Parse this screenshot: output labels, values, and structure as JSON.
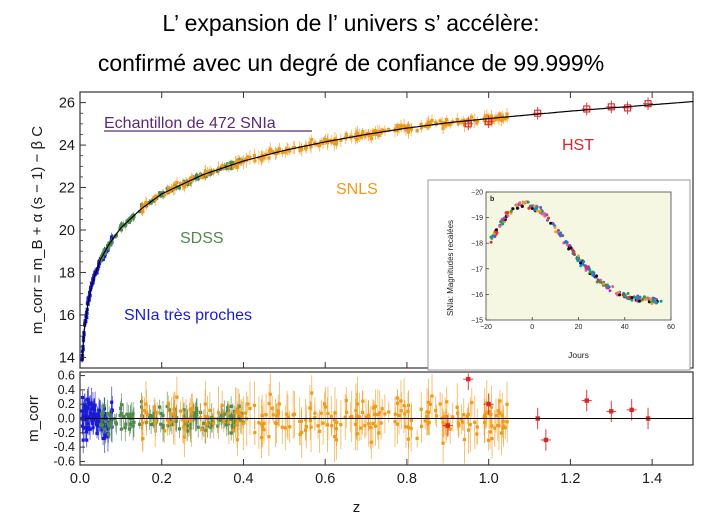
{
  "title_line1": "L’ expansion de l’ univers s’ accélère:",
  "title_line2": "confirmé avec un degré de confiance de 99.999%",
  "colors": {
    "very_near": "#1a1ad6",
    "sdss": "#4e8a4e",
    "snls": "#f09a1c",
    "hst": "#d9262b",
    "sample_label": "#5a2a7a",
    "fit_line": "#000000"
  },
  "chart_data": [
    {
      "type": "scatter",
      "xlabel": "",
      "ylabel": "m_corr = m_B + α (s − 1) − β C",
      "xlim": [
        0.0,
        1.5
      ],
      "ylim": [
        13.5,
        26.5
      ],
      "y_ticks": [
        "14",
        "16",
        "18",
        "20",
        "22",
        "24",
        "26"
      ],
      "grid": false,
      "annotations": [
        {
          "text": "Echantillon de 472 SNIa",
          "color": "#5a2a7a",
          "underline": true
        },
        {
          "text": "SNIa très proches",
          "color": "#1a1ad6"
        },
        {
          "text": "SDSS",
          "color": "#4e8a4e"
        },
        {
          "text": "SNLS",
          "color": "#f09a1c"
        },
        {
          "text": "HST",
          "color": "#d9262b"
        }
      ],
      "fit_curve": {
        "x": [
          0.005,
          0.01,
          0.02,
          0.03,
          0.05,
          0.07,
          0.1,
          0.15,
          0.2,
          0.3,
          0.4,
          0.5,
          0.6,
          0.7,
          0.8,
          0.9,
          1.0,
          1.2,
          1.4,
          1.5
        ],
        "y": [
          13.8,
          15.2,
          16.6,
          17.5,
          18.6,
          19.3,
          20.1,
          21.0,
          21.7,
          22.6,
          23.25,
          23.75,
          24.15,
          24.5,
          24.8,
          25.05,
          25.25,
          25.6,
          25.9,
          26.05
        ]
      },
      "series": [
        {
          "name": "SNIa très proches",
          "x_range": [
            0.005,
            0.08
          ],
          "y_range": [
            13.9,
            19.0
          ]
        },
        {
          "name": "SDSS",
          "x_range": [
            0.05,
            0.4
          ],
          "y_range": [
            18.8,
            23.4
          ]
        },
        {
          "name": "SNLS",
          "x_range": [
            0.15,
            1.05
          ],
          "y_range": [
            21.5,
            25.6
          ]
        },
        {
          "name": "HST",
          "x": [
            0.95,
            1.0,
            1.12,
            1.24,
            1.3,
            1.34,
            1.39
          ],
          "y": [
            25.0,
            25.1,
            25.5,
            25.7,
            25.8,
            25.75,
            25.95
          ]
        }
      ]
    },
    {
      "type": "scatter",
      "xlabel": "z",
      "ylabel": "m_corr",
      "xlim": [
        0.0,
        1.5
      ],
      "ylim": [
        -0.65,
        0.65
      ],
      "x_ticks": [
        "0.0",
        "0.2",
        "0.4",
        "0.6",
        "0.8",
        "1.0",
        "1.2",
        "1.4"
      ],
      "y_ticks": [
        "0.6",
        "0.4",
        "0.2",
        "0.0",
        "-0.2",
        "-0.4",
        "-0.6"
      ],
      "reference_line_y": 0.0,
      "series": [
        {
          "name": "SNIa très proches",
          "x_range": [
            0.005,
            0.08
          ],
          "spread": 0.35
        },
        {
          "name": "SDSS",
          "x_range": [
            0.05,
            0.4
          ],
          "spread": 0.18
        },
        {
          "name": "SNLS",
          "x_range": [
            0.15,
            1.05
          ],
          "spread": 0.3
        },
        {
          "name": "HST",
          "x": [
            0.9,
            0.95,
            1.0,
            1.12,
            1.14,
            1.24,
            1.3,
            1.35,
            1.39
          ],
          "y": [
            -0.1,
            0.55,
            0.2,
            0.0,
            -0.3,
            0.25,
            0.1,
            0.12,
            0.0
          ]
        }
      ]
    },
    {
      "type": "scatter",
      "panel_letter": "b",
      "xlabel": "Jours",
      "ylabel": "SNIa:  Magnitudes recalées",
      "xlim": [
        -20,
        60
      ],
      "ylim": [
        -15,
        -20
      ],
      "x_ticks": [
        "−20",
        "0",
        "20",
        "40",
        "60"
      ],
      "y_ticks": [
        "−20",
        "−19",
        "−18",
        "−17",
        "−16",
        "−15"
      ],
      "light_curve": {
        "x": [
          -18,
          -12,
          -8,
          -4,
          0,
          4,
          8,
          12,
          16,
          20,
          24,
          28,
          32,
          36,
          40,
          45,
          50,
          55
        ],
        "y": [
          -18.1,
          -19.0,
          -19.4,
          -19.55,
          -19.5,
          -19.25,
          -18.85,
          -18.35,
          -17.85,
          -17.4,
          -17.0,
          -16.6,
          -16.3,
          -16.1,
          -15.95,
          -15.85,
          -15.8,
          -15.75
        ]
      }
    }
  ]
}
